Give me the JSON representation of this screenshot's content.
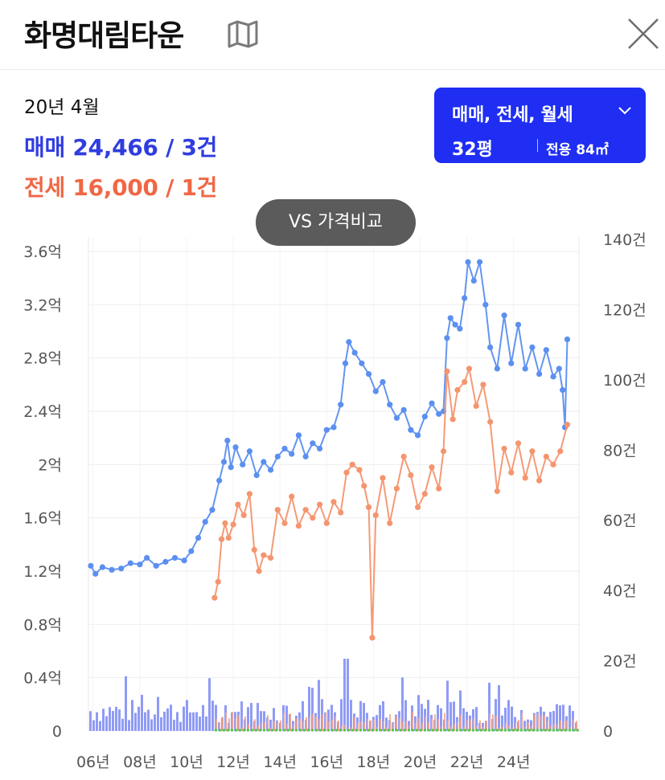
{
  "header": {
    "title": "화명대림타운",
    "map_icon": "map-icon",
    "close_icon": "close-icon"
  },
  "summary": {
    "date": "20년 4월",
    "sale": "매매 24,466 / 3건",
    "jeonse": "전세 16,000 / 1건"
  },
  "filter": {
    "trade_types": "매매, 전세, 월세",
    "size": "32평",
    "area": "전용 84㎡",
    "color": "#1f2ef2"
  },
  "compare_button": {
    "label": "VS 가격비교"
  },
  "chart_data": {
    "type": "line",
    "x_ticks": [
      "06년",
      "08년",
      "10년",
      "12년",
      "14년",
      "16년",
      "18년",
      "20년",
      "22년",
      "24년"
    ],
    "y_left_ticks": [
      "0",
      "0.4억",
      "0.8억",
      "1.2억",
      "1.6억",
      "2억",
      "2.4억",
      "2.8억",
      "3.2억",
      "3.6억"
    ],
    "y_right_ticks": [
      "0",
      "20건",
      "40건",
      "60건",
      "80건",
      "100건",
      "120건",
      "140건"
    ],
    "y_left_range": [
      0,
      3.6
    ],
    "y_right_range": [
      0,
      140
    ],
    "x_range": [
      2005.8,
      2026.8
    ],
    "grid": true,
    "series": [
      {
        "type": "line",
        "color": "#5b8ff0",
        "points": [
          [
            2005.9,
            1.24
          ],
          [
            2006.1,
            1.18
          ],
          [
            2006.4,
            1.23
          ],
          [
            2006.8,
            1.21
          ],
          [
            2007.2,
            1.22
          ],
          [
            2007.6,
            1.26
          ],
          [
            2008.0,
            1.25
          ],
          [
            2008.3,
            1.3
          ],
          [
            2008.7,
            1.24
          ],
          [
            2009.1,
            1.27
          ],
          [
            2009.5,
            1.3
          ],
          [
            2009.9,
            1.28
          ],
          [
            2010.2,
            1.35
          ],
          [
            2010.5,
            1.45
          ],
          [
            2010.8,
            1.57
          ],
          [
            2011.1,
            1.66
          ],
          [
            2011.4,
            1.88
          ],
          [
            2011.6,
            2.02
          ],
          [
            2011.75,
            2.18
          ],
          [
            2011.9,
            1.98
          ],
          [
            2012.1,
            2.13
          ],
          [
            2012.4,
            2.0
          ],
          [
            2012.7,
            2.1
          ],
          [
            2013.0,
            1.92
          ],
          [
            2013.3,
            2.02
          ],
          [
            2013.6,
            1.96
          ],
          [
            2013.9,
            2.06
          ],
          [
            2014.2,
            2.12
          ],
          [
            2014.5,
            2.08
          ],
          [
            2014.8,
            2.22
          ],
          [
            2015.1,
            2.06
          ],
          [
            2015.4,
            2.16
          ],
          [
            2015.7,
            2.12
          ],
          [
            2016.0,
            2.26
          ],
          [
            2016.3,
            2.28
          ],
          [
            2016.6,
            2.45
          ],
          [
            2016.8,
            2.76
          ],
          [
            2016.95,
            2.92
          ],
          [
            2017.2,
            2.84
          ],
          [
            2017.5,
            2.76
          ],
          [
            2017.8,
            2.68
          ],
          [
            2018.1,
            2.55
          ],
          [
            2018.4,
            2.62
          ],
          [
            2018.7,
            2.45
          ],
          [
            2019.0,
            2.35
          ],
          [
            2019.3,
            2.41
          ],
          [
            2019.6,
            2.26
          ],
          [
            2019.9,
            2.22
          ],
          [
            2020.2,
            2.36
          ],
          [
            2020.5,
            2.46
          ],
          [
            2020.8,
            2.38
          ],
          [
            2021.0,
            2.4
          ],
          [
            2021.15,
            2.95
          ],
          [
            2021.3,
            3.1
          ],
          [
            2021.5,
            3.05
          ],
          [
            2021.7,
            3.02
          ],
          [
            2021.9,
            3.25
          ],
          [
            2022.05,
            3.52
          ],
          [
            2022.3,
            3.38
          ],
          [
            2022.55,
            3.52
          ],
          [
            2022.8,
            3.2
          ],
          [
            2023.0,
            2.88
          ],
          [
            2023.3,
            2.72
          ],
          [
            2023.6,
            3.12
          ],
          [
            2023.9,
            2.76
          ],
          [
            2024.2,
            3.05
          ],
          [
            2024.5,
            2.72
          ],
          [
            2024.8,
            2.88
          ],
          [
            2025.1,
            2.68
          ],
          [
            2025.4,
            2.86
          ],
          [
            2025.7,
            2.66
          ],
          [
            2025.95,
            2.72
          ],
          [
            2026.1,
            2.56
          ],
          [
            2026.2,
            2.28
          ],
          [
            2026.3,
            2.94
          ]
        ]
      },
      {
        "type": "line",
        "color": "#f4956f",
        "points": [
          [
            2011.2,
            1.0
          ],
          [
            2011.35,
            1.12
          ],
          [
            2011.5,
            1.44
          ],
          [
            2011.65,
            1.56
          ],
          [
            2011.8,
            1.45
          ],
          [
            2012.0,
            1.55
          ],
          [
            2012.2,
            1.7
          ],
          [
            2012.45,
            1.62
          ],
          [
            2012.7,
            1.78
          ],
          [
            2012.9,
            1.36
          ],
          [
            2013.1,
            1.2
          ],
          [
            2013.3,
            1.32
          ],
          [
            2013.6,
            1.3
          ],
          [
            2013.9,
            1.66
          ],
          [
            2014.2,
            1.56
          ],
          [
            2014.5,
            1.76
          ],
          [
            2014.8,
            1.54
          ],
          [
            2015.1,
            1.66
          ],
          [
            2015.4,
            1.6
          ],
          [
            2015.7,
            1.7
          ],
          [
            2016.0,
            1.56
          ],
          [
            2016.3,
            1.72
          ],
          [
            2016.6,
            1.64
          ],
          [
            2016.85,
            1.94
          ],
          [
            2017.1,
            2.0
          ],
          [
            2017.4,
            1.96
          ],
          [
            2017.6,
            1.84
          ],
          [
            2017.8,
            1.68
          ],
          [
            2017.95,
            0.7
          ],
          [
            2018.1,
            1.62
          ],
          [
            2018.4,
            1.9
          ],
          [
            2018.7,
            1.56
          ],
          [
            2019.0,
            1.82
          ],
          [
            2019.3,
            2.06
          ],
          [
            2019.6,
            1.92
          ],
          [
            2019.9,
            1.68
          ],
          [
            2020.2,
            1.78
          ],
          [
            2020.5,
            1.98
          ],
          [
            2020.8,
            1.82
          ],
          [
            2021.0,
            2.1
          ],
          [
            2021.15,
            2.7
          ],
          [
            2021.4,
            2.34
          ],
          [
            2021.6,
            2.56
          ],
          [
            2021.9,
            2.62
          ],
          [
            2022.1,
            2.72
          ],
          [
            2022.4,
            2.44
          ],
          [
            2022.7,
            2.6
          ],
          [
            2023.0,
            2.32
          ],
          [
            2023.3,
            1.8
          ],
          [
            2023.6,
            2.12
          ],
          [
            2023.9,
            1.94
          ],
          [
            2024.2,
            2.16
          ],
          [
            2024.5,
            1.9
          ],
          [
            2024.8,
            2.1
          ],
          [
            2025.1,
            1.88
          ],
          [
            2025.4,
            2.06
          ],
          [
            2025.7,
            2.0
          ],
          [
            2026.0,
            2.1
          ],
          [
            2026.3,
            2.3
          ]
        ]
      }
    ]
  }
}
